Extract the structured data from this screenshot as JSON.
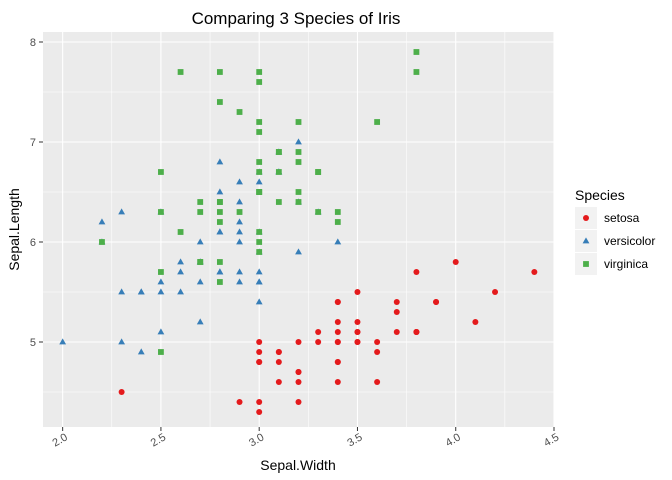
{
  "chart_data": {
    "type": "scatter",
    "title": "Comparing 3 Species of Iris",
    "xlabel": "Sepal.Width",
    "ylabel": "Sepal.Length",
    "xlim": [
      1.9,
      4.5
    ],
    "ylim": [
      4.15,
      8.1
    ],
    "x_ticks": [
      2.0,
      2.5,
      3.0,
      3.5,
      4.0,
      4.5
    ],
    "x_tick_labels": [
      "2.0",
      "2.5",
      "3.0",
      "3.5",
      "4.0",
      "4.5"
    ],
    "y_ticks": [
      5,
      6,
      7,
      8
    ],
    "y_tick_labels": [
      "5",
      "6",
      "7",
      "8"
    ],
    "grid": true,
    "legend": {
      "title": "Species",
      "placement": "right"
    },
    "series": [
      {
        "name": "setosa",
        "color": "#e41a1c",
        "marker": "circle",
        "points": [
          [
            3.5,
            5.1
          ],
          [
            3.0,
            4.9
          ],
          [
            3.2,
            4.7
          ],
          [
            3.1,
            4.6
          ],
          [
            3.6,
            5.0
          ],
          [
            3.9,
            5.4
          ],
          [
            3.4,
            4.6
          ],
          [
            3.4,
            5.0
          ],
          [
            2.9,
            4.4
          ],
          [
            3.1,
            4.9
          ],
          [
            3.7,
            5.4
          ],
          [
            3.4,
            4.8
          ],
          [
            3.0,
            4.8
          ],
          [
            3.0,
            4.3
          ],
          [
            4.0,
            5.8
          ],
          [
            4.4,
            5.7
          ],
          [
            3.9,
            5.4
          ],
          [
            3.5,
            5.1
          ],
          [
            3.8,
            5.7
          ],
          [
            3.8,
            5.1
          ],
          [
            3.4,
            5.4
          ],
          [
            3.7,
            5.1
          ],
          [
            3.6,
            4.6
          ],
          [
            3.3,
            5.1
          ],
          [
            3.4,
            4.8
          ],
          [
            3.0,
            5.0
          ],
          [
            3.4,
            5.0
          ],
          [
            3.5,
            5.2
          ],
          [
            3.4,
            5.2
          ],
          [
            3.2,
            4.7
          ],
          [
            3.1,
            4.8
          ],
          [
            3.4,
            5.4
          ],
          [
            4.1,
            5.2
          ],
          [
            4.2,
            5.5
          ],
          [
            3.1,
            4.9
          ],
          [
            3.2,
            5.0
          ],
          [
            3.5,
            5.5
          ],
          [
            3.6,
            4.9
          ],
          [
            3.0,
            4.4
          ],
          [
            3.4,
            5.1
          ],
          [
            3.5,
            5.0
          ],
          [
            2.3,
            4.5
          ],
          [
            3.2,
            4.4
          ],
          [
            3.5,
            5.0
          ],
          [
            3.8,
            5.1
          ],
          [
            3.0,
            4.8
          ],
          [
            3.8,
            5.1
          ],
          [
            3.2,
            4.6
          ],
          [
            3.7,
            5.3
          ],
          [
            3.3,
            5.0
          ]
        ]
      },
      {
        "name": "versicolor",
        "color": "#377eb8",
        "marker": "triangle",
        "points": [
          [
            3.2,
            7.0
          ],
          [
            3.2,
            6.4
          ],
          [
            3.1,
            6.9
          ],
          [
            2.3,
            5.5
          ],
          [
            2.8,
            6.5
          ],
          [
            2.8,
            5.7
          ],
          [
            3.3,
            6.3
          ],
          [
            2.4,
            4.9
          ],
          [
            2.9,
            6.6
          ],
          [
            2.7,
            5.2
          ],
          [
            2.0,
            5.0
          ],
          [
            3.0,
            5.9
          ],
          [
            2.2,
            6.0
          ],
          [
            2.9,
            6.1
          ],
          [
            2.9,
            5.6
          ],
          [
            3.1,
            6.7
          ],
          [
            3.0,
            5.6
          ],
          [
            2.7,
            5.8
          ],
          [
            2.2,
            6.2
          ],
          [
            2.5,
            5.6
          ],
          [
            3.2,
            5.9
          ],
          [
            2.8,
            6.1
          ],
          [
            2.5,
            6.3
          ],
          [
            2.8,
            6.1
          ],
          [
            2.9,
            6.4
          ],
          [
            3.0,
            6.6
          ],
          [
            2.8,
            6.8
          ],
          [
            3.0,
            6.7
          ],
          [
            2.9,
            6.0
          ],
          [
            2.6,
            5.7
          ],
          [
            2.4,
            5.5
          ],
          [
            2.4,
            5.5
          ],
          [
            2.7,
            5.8
          ],
          [
            2.7,
            6.0
          ],
          [
            3.0,
            5.4
          ],
          [
            3.4,
            6.0
          ],
          [
            3.1,
            6.7
          ],
          [
            2.3,
            6.3
          ],
          [
            3.0,
            5.6
          ],
          [
            2.5,
            5.5
          ],
          [
            2.6,
            5.5
          ],
          [
            3.0,
            6.1
          ],
          [
            2.6,
            5.8
          ],
          [
            2.3,
            5.0
          ],
          [
            2.7,
            5.6
          ],
          [
            3.0,
            5.7
          ],
          [
            2.9,
            5.7
          ],
          [
            2.9,
            6.2
          ],
          [
            2.5,
            5.1
          ],
          [
            2.8,
            5.7
          ]
        ]
      },
      {
        "name": "virginica",
        "color": "#4daf4a",
        "marker": "square",
        "points": [
          [
            3.3,
            6.3
          ],
          [
            2.7,
            5.8
          ],
          [
            3.0,
            7.1
          ],
          [
            2.9,
            6.3
          ],
          [
            3.0,
            6.5
          ],
          [
            3.0,
            7.6
          ],
          [
            2.5,
            4.9
          ],
          [
            2.9,
            7.3
          ],
          [
            2.5,
            6.7
          ],
          [
            3.6,
            7.2
          ],
          [
            3.2,
            6.5
          ],
          [
            2.7,
            6.4
          ],
          [
            3.0,
            6.8
          ],
          [
            2.5,
            5.7
          ],
          [
            2.8,
            5.8
          ],
          [
            3.2,
            6.4
          ],
          [
            3.0,
            6.5
          ],
          [
            3.8,
            7.7
          ],
          [
            2.6,
            7.7
          ],
          [
            2.2,
            6.0
          ],
          [
            3.2,
            6.9
          ],
          [
            2.8,
            5.6
          ],
          [
            2.8,
            7.7
          ],
          [
            2.7,
            6.3
          ],
          [
            3.3,
            6.7
          ],
          [
            3.2,
            7.2
          ],
          [
            2.8,
            6.2
          ],
          [
            3.0,
            6.1
          ],
          [
            2.8,
            6.4
          ],
          [
            3.0,
            7.2
          ],
          [
            2.8,
            7.4
          ],
          [
            3.8,
            7.9
          ],
          [
            2.8,
            6.4
          ],
          [
            2.8,
            6.3
          ],
          [
            2.6,
            6.1
          ],
          [
            3.0,
            7.7
          ],
          [
            3.4,
            6.3
          ],
          [
            3.1,
            6.4
          ],
          [
            3.0,
            6.0
          ],
          [
            3.1,
            6.9
          ],
          [
            3.1,
            6.7
          ],
          [
            3.1,
            6.9
          ],
          [
            2.7,
            5.8
          ],
          [
            3.2,
            6.8
          ],
          [
            3.3,
            6.7
          ],
          [
            3.0,
            6.7
          ],
          [
            2.5,
            6.3
          ],
          [
            3.0,
            6.5
          ],
          [
            3.4,
            6.2
          ],
          [
            3.0,
            5.9
          ]
        ]
      }
    ]
  }
}
